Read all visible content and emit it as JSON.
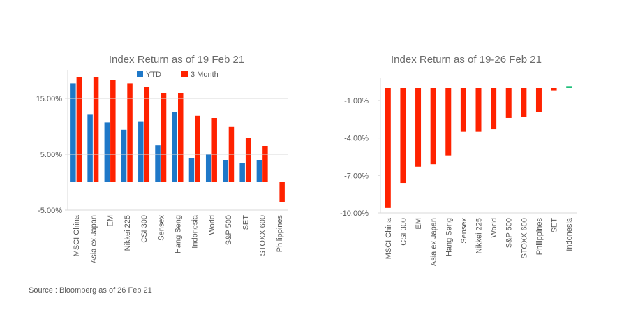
{
  "source": "Source : Bloomberg as of 26 Feb 21",
  "colors": {
    "ytd": "#1f78c8",
    "three_month": "#ff2200",
    "positive": "#1fbf7a",
    "axis": "#d9d9d9",
    "text": "#595959"
  },
  "chart_data": [
    {
      "type": "bar",
      "title": "Index Return as of 19 Feb 21",
      "categories": [
        "MSCI China",
        "Asia ex Japan",
        "EM",
        "Nikkei 225",
        "CSI 300",
        "Sensex",
        "Hang Seng",
        "Indonesia",
        "World",
        "S&P 500",
        "SET",
        "STOXX 600",
        "Philippines"
      ],
      "series": [
        {
          "name": "YTD",
          "color": "#1f78c8",
          "values": [
            17.7,
            12.2,
            10.7,
            9.4,
            10.8,
            6.6,
            12.5,
            4.3,
            5.1,
            4.0,
            3.5,
            4.0,
            null
          ]
        },
        {
          "name": "3 Month",
          "color": "#ff2200",
          "values": [
            18.8,
            18.8,
            18.3,
            17.7,
            17.0,
            16.0,
            16.0,
            11.9,
            11.5,
            9.9,
            8.0,
            6.5,
            -3.5
          ]
        }
      ],
      "yticks": [
        15,
        5,
        -5
      ],
      "tick_labels": [
        "15.00%",
        "5.00%",
        "-5.00%"
      ],
      "ylim": [
        -5,
        20
      ],
      "legend": "top",
      "grid": false
    },
    {
      "type": "bar",
      "title": "Index Return as of 19-26 Feb 21",
      "categories": [
        "MSCI China",
        "CSI 300",
        "EM",
        "Asia ex Japan",
        "Hang Seng",
        "Sensex",
        "Nikkei 225",
        "World",
        "S&P 500",
        "STOXX 600",
        "Philippines",
        "SET",
        "Indonesia"
      ],
      "series": [
        {
          "name": "",
          "values": [
            -9.6,
            -7.6,
            -6.3,
            -6.1,
            -5.4,
            -3.5,
            -3.5,
            -3.3,
            -2.4,
            -2.3,
            -1.9,
            -0.2,
            0.15
          ]
        }
      ],
      "colors": {
        "negative": "#ff2200",
        "positive": "#1fbf7a"
      },
      "yticks": [
        -1,
        -4,
        -7,
        -10
      ],
      "tick_labels": [
        "-1.00%",
        "-4.00%",
        "-7.00%",
        "-10.00%"
      ],
      "ylim": [
        -10,
        0.3
      ],
      "legend": "none",
      "grid": false
    }
  ]
}
